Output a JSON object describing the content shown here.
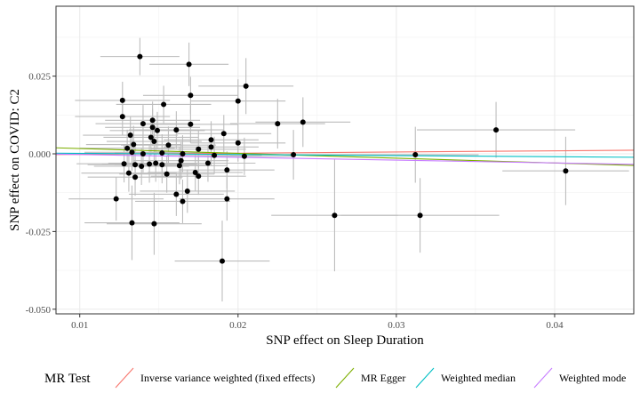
{
  "chart_data": {
    "type": "scatter",
    "xlabel": "SNP effect on Sleep Duration",
    "ylabel": "SNP effect on COVID: C2",
    "xlim": [
      0.0085,
      0.045
    ],
    "ylim": [
      -0.0515,
      0.0475
    ],
    "x_ticks": [
      0.01,
      0.02,
      0.03,
      0.04
    ],
    "x_tick_labels": [
      "0.01",
      "0.02",
      "0.03",
      "0.04"
    ],
    "y_ticks": [
      -0.05,
      -0.025,
      0.0,
      0.025
    ],
    "y_tick_labels": [
      "-0.050",
      "-0.025",
      "0.000",
      "0.025"
    ],
    "grid": true,
    "legend": {
      "title": "MR Test",
      "position": "bottom",
      "items": [
        {
          "label": "Inverse variance weighted (fixed effects)",
          "color": "#F8766D"
        },
        {
          "label": "MR Egger",
          "color": "#7CAE00"
        },
        {
          "label": "Weighted median",
          "color": "#00BFC4"
        },
        {
          "label": "Weighted mode",
          "color": "#C77CFF"
        }
      ]
    },
    "lines": [
      {
        "name": "Inverse variance weighted (fixed effects)",
        "color": "#F8766D",
        "intercept": -0.00055,
        "slope": 0.038
      },
      {
        "name": "MR Egger",
        "color": "#7CAE00",
        "intercept": 0.00325,
        "slope": -0.155
      },
      {
        "name": "Weighted median",
        "color": "#00BFC4",
        "intercept": 0.00052,
        "slope": -0.0362
      },
      {
        "name": "Weighted mode",
        "color": "#C77CFF",
        "intercept": 0.00068,
        "slope": -0.0903
      }
    ],
    "points": [
      {
        "x": 0.0138,
        "y": 0.0313,
        "xerr": 0.0025,
        "yerr": 0.006
      },
      {
        "x": 0.0169,
        "y": 0.0288,
        "xerr": 0.0025,
        "yerr": 0.007
      },
      {
        "x": 0.0205,
        "y": 0.0218,
        "xerr": 0.003,
        "yerr": 0.009
      },
      {
        "x": 0.017,
        "y": 0.0188,
        "xerr": 0.003,
        "yerr": 0.006
      },
      {
        "x": 0.0127,
        "y": 0.0172,
        "xerr": 0.003,
        "yerr": 0.006
      },
      {
        "x": 0.02,
        "y": 0.017,
        "xerr": 0.003,
        "yerr": 0.007
      },
      {
        "x": 0.0153,
        "y": 0.0159,
        "xerr": 0.003,
        "yerr": 0.006
      },
      {
        "x": 0.0127,
        "y": 0.012,
        "xerr": 0.003,
        "yerr": 0.006
      },
      {
        "x": 0.0146,
        "y": 0.0108,
        "xerr": 0.003,
        "yerr": 0.006
      },
      {
        "x": 0.014,
        "y": 0.0097,
        "xerr": 0.003,
        "yerr": 0.006
      },
      {
        "x": 0.0225,
        "y": 0.0097,
        "xerr": 0.003,
        "yerr": 0.008
      },
      {
        "x": 0.0241,
        "y": 0.0102,
        "xerr": 0.003,
        "yerr": 0.008
      },
      {
        "x": 0.017,
        "y": 0.0095,
        "xerr": 0.003,
        "yerr": 0.006
      },
      {
        "x": 0.0146,
        "y": 0.0085,
        "xerr": 0.003,
        "yerr": 0.006
      },
      {
        "x": 0.0161,
        "y": 0.0077,
        "xerr": 0.003,
        "yerr": 0.006
      },
      {
        "x": 0.0149,
        "y": 0.0075,
        "xerr": 0.003,
        "yerr": 0.006
      },
      {
        "x": 0.0363,
        "y": 0.0077,
        "xerr": 0.005,
        "yerr": 0.009
      },
      {
        "x": 0.0191,
        "y": 0.0065,
        "xerr": 0.003,
        "yerr": 0.006
      },
      {
        "x": 0.0132,
        "y": 0.006,
        "xerr": 0.003,
        "yerr": 0.006
      },
      {
        "x": 0.0145,
        "y": 0.0053,
        "xerr": 0.003,
        "yerr": 0.006
      },
      {
        "x": 0.0183,
        "y": 0.0045,
        "xerr": 0.003,
        "yerr": 0.006
      },
      {
        "x": 0.0147,
        "y": 0.004,
        "xerr": 0.003,
        "yerr": 0.006
      },
      {
        "x": 0.02,
        "y": 0.0035,
        "xerr": 0.003,
        "yerr": 0.006
      },
      {
        "x": 0.0134,
        "y": 0.003,
        "xerr": 0.003,
        "yerr": 0.006
      },
      {
        "x": 0.0156,
        "y": 0.0028,
        "xerr": 0.003,
        "yerr": 0.006
      },
      {
        "x": 0.0183,
        "y": 0.0022,
        "xerr": 0.003,
        "yerr": 0.006
      },
      {
        "x": 0.013,
        "y": 0.0018,
        "xerr": 0.003,
        "yerr": 0.006
      },
      {
        "x": 0.0175,
        "y": 0.0015,
        "xerr": 0.003,
        "yerr": 0.006
      },
      {
        "x": 0.0133,
        "y": 0.0005,
        "xerr": 0.003,
        "yerr": 0.006
      },
      {
        "x": 0.014,
        "y": 0.0,
        "xerr": 0.003,
        "yerr": 0.006
      },
      {
        "x": 0.0152,
        "y": 0.0003,
        "xerr": 0.003,
        "yerr": 0.006
      },
      {
        "x": 0.0165,
        "y": 0.0,
        "xerr": 0.003,
        "yerr": 0.006
      },
      {
        "x": 0.0185,
        "y": -0.0005,
        "xerr": 0.003,
        "yerr": 0.006
      },
      {
        "x": 0.0204,
        "y": -0.0008,
        "xerr": 0.003,
        "yerr": 0.006
      },
      {
        "x": 0.0235,
        "y": -0.0003,
        "xerr": 0.004,
        "yerr": 0.008
      },
      {
        "x": 0.0312,
        "y": -0.0003,
        "xerr": 0.004,
        "yerr": 0.009
      },
      {
        "x": 0.0164,
        "y": -0.0022,
        "xerr": 0.003,
        "yerr": 0.006
      },
      {
        "x": 0.0148,
        "y": -0.003,
        "xerr": 0.003,
        "yerr": 0.006
      },
      {
        "x": 0.0128,
        "y": -0.0032,
        "xerr": 0.003,
        "yerr": 0.006
      },
      {
        "x": 0.0135,
        "y": -0.0035,
        "xerr": 0.003,
        "yerr": 0.006
      },
      {
        "x": 0.0139,
        "y": -0.004,
        "xerr": 0.003,
        "yerr": 0.006
      },
      {
        "x": 0.0144,
        "y": -0.0033,
        "xerr": 0.003,
        "yerr": 0.006
      },
      {
        "x": 0.0152,
        "y": -0.0035,
        "xerr": 0.003,
        "yerr": 0.006
      },
      {
        "x": 0.0163,
        "y": -0.0038,
        "xerr": 0.003,
        "yerr": 0.006
      },
      {
        "x": 0.0181,
        "y": -0.003,
        "xerr": 0.003,
        "yerr": 0.006
      },
      {
        "x": 0.0193,
        "y": -0.0052,
        "xerr": 0.003,
        "yerr": 0.006
      },
      {
        "x": 0.0173,
        "y": -0.006,
        "xerr": 0.003,
        "yerr": 0.006
      },
      {
        "x": 0.0131,
        "y": -0.0062,
        "xerr": 0.003,
        "yerr": 0.006
      },
      {
        "x": 0.0155,
        "y": -0.0065,
        "xerr": 0.003,
        "yerr": 0.006
      },
      {
        "x": 0.0135,
        "y": -0.0075,
        "xerr": 0.003,
        "yerr": 0.006
      },
      {
        "x": 0.0175,
        "y": -0.0072,
        "xerr": 0.003,
        "yerr": 0.006
      },
      {
        "x": 0.0407,
        "y": -0.0055,
        "xerr": 0.004,
        "yerr": 0.011
      },
      {
        "x": 0.0168,
        "y": -0.012,
        "xerr": 0.003,
        "yerr": 0.007
      },
      {
        "x": 0.0161,
        "y": -0.013,
        "xerr": 0.003,
        "yerr": 0.007
      },
      {
        "x": 0.0165,
        "y": -0.0153,
        "xerr": 0.003,
        "yerr": 0.007
      },
      {
        "x": 0.0123,
        "y": -0.0145,
        "xerr": 0.003,
        "yerr": 0.007
      },
      {
        "x": 0.0193,
        "y": -0.0145,
        "xerr": 0.003,
        "yerr": 0.007
      },
      {
        "x": 0.0261,
        "y": -0.0198,
        "xerr": 0.004,
        "yerr": 0.018
      },
      {
        "x": 0.0315,
        "y": -0.0198,
        "xerr": 0.005,
        "yerr": 0.012
      },
      {
        "x": 0.0133,
        "y": -0.0222,
        "xerr": 0.003,
        "yerr": 0.012
      },
      {
        "x": 0.0147,
        "y": -0.0225,
        "xerr": 0.003,
        "yerr": 0.01
      },
      {
        "x": 0.019,
        "y": -0.0345,
        "xerr": 0.003,
        "yerr": 0.013
      }
    ]
  }
}
